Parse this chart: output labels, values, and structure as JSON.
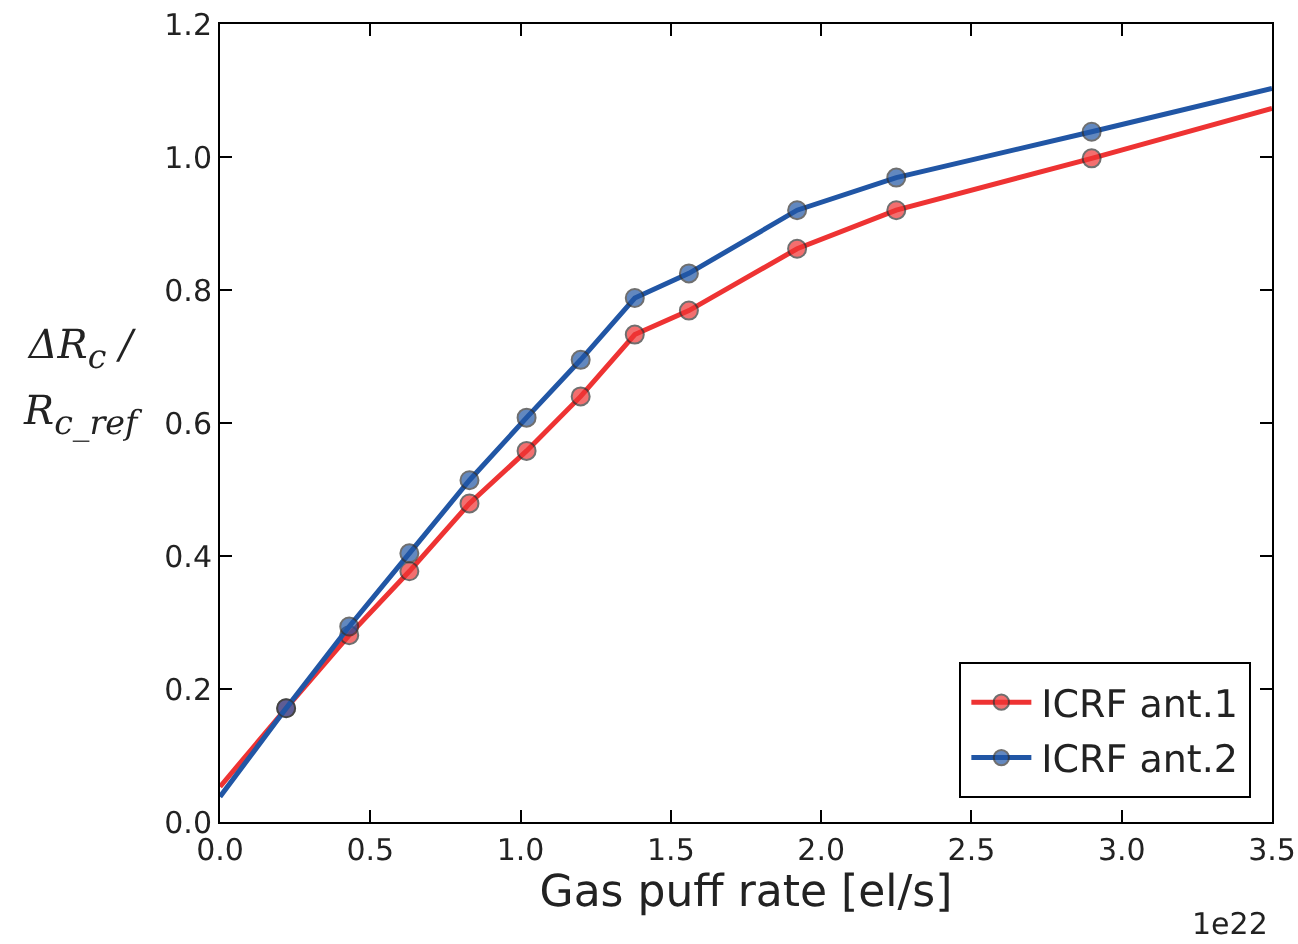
{
  "chart_data": {
    "type": "line",
    "xlabel": "Gas puff rate [el/s]",
    "ylabel": "ΔR$_{c}$ / R$_{c_ref}$",
    "annotations": [
      "1e22"
    ],
    "x": [
      0,
      0.22,
      0.43,
      0.63,
      0.83,
      1.02,
      1.2,
      1.38,
      1.56,
      1.92,
      2.25,
      2.9,
      3.5
    ],
    "series": [
      {
        "name": "ICRF ant.1",
        "color": "#ee3333",
        "values": [
          0.053,
          0.171,
          0.281,
          0.377,
          0.479,
          0.558,
          0.64,
          0.733,
          0.769,
          0.862,
          0.92,
          0.998,
          1.073
        ]
      },
      {
        "name": "ICRF ant.2",
        "color": "#2156a5",
        "values": [
          0.038,
          0.171,
          0.294,
          0.404,
          0.514,
          0.608,
          0.695,
          0.788,
          0.825,
          0.92,
          0.969,
          1.038,
          1.103
        ]
      }
    ],
    "xlim": [
      0,
      3.5
    ],
    "xticks": [
      {
        "value": 0,
        "label": "0.0"
      },
      0.5,
      {
        "value": 1,
        "label": "1.0"
      },
      1.5,
      {
        "value": 2,
        "label": "2.0"
      },
      2.5,
      {
        "value": 3,
        "label": "3.0"
      },
      3.5
    ],
    "ylim": [
      0,
      1.2
    ],
    "yticks": [
      {
        "value": 0,
        "label": "0.0"
      },
      0.2,
      0.4,
      0.6,
      0.8,
      {
        "value": 1,
        "label": "1.0"
      },
      1.2
    ],
    "legend": "bottom right",
    "marker": "circle",
    "line_style": "solid",
    "grid": false
  }
}
